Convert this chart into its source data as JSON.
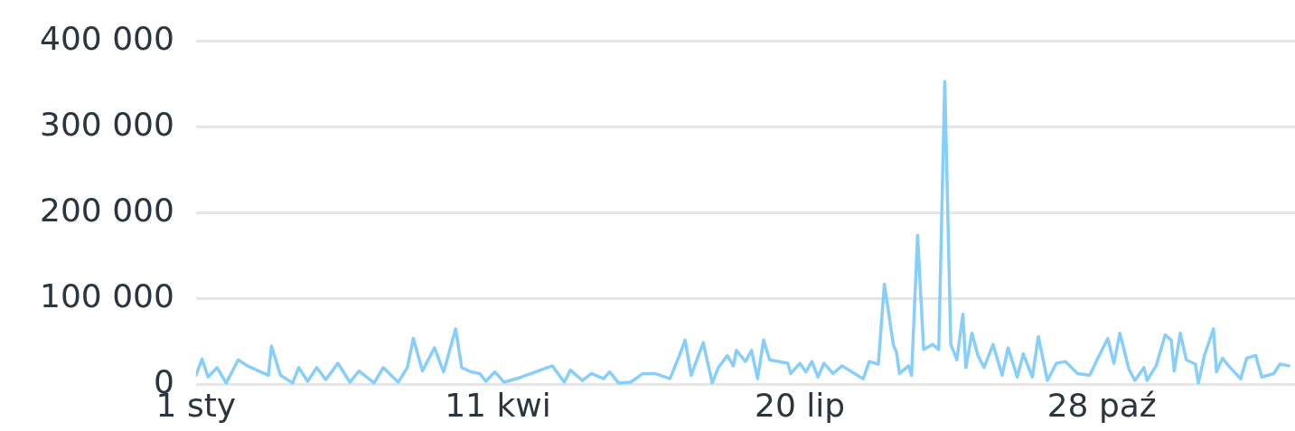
{
  "chart_data": {
    "type": "line",
    "x": [
      "--01-01",
      "--01-03",
      "--01-05",
      "--01-08",
      "--01-11",
      "--01-15",
      "--01-18",
      "--01-25",
      "--01-26",
      "--01-29",
      "--02-02",
      "--02-04",
      "--02-07",
      "--02-10",
      "--02-13",
      "--02-17",
      "--02-21",
      "--02-24",
      "--03-01",
      "--03-04",
      "--03-09",
      "--03-12",
      "--03-14",
      "--03-17",
      "--03-21",
      "--03-24",
      "--03-25",
      "--03-28",
      "--03-30",
      "--04-02",
      "--04-05",
      "--04-07",
      "--04-10",
      "--04-13",
      "--04-18",
      "--04-22",
      "--04-29",
      "--05-03",
      "--05-05",
      "--05-09",
      "--05-12",
      "--05-16",
      "--05-18",
      "--05-21",
      "--05-25",
      "--05-29",
      "--06-02",
      "--06-07",
      "--06-10",
      "--06-12",
      "--06-14",
      "--06-18",
      "--06-21",
      "--06-23",
      "--06-26",
      "--06-28",
      "--06-29",
      "--07-02",
      "--07-04",
      "--07-06",
      "--07-08",
      "--07-10",
      "--07-16",
      "--07-17",
      "--07-20",
      "--07-22",
      "--07-24",
      "--07-26",
      "--07-28",
      "--07-31",
      "--08-03",
      "--08-08",
      "--08-10",
      "--08-12",
      "--08-15",
      "--08-17",
      "--08-20",
      "--08-21",
      "--08-22",
      "--08-25",
      "--08-26",
      "--08-28",
      "--08-30",
      "--09-02",
      "--09-04",
      "--09-06",
      "--09-08",
      "--09-10",
      "--09-12",
      "--09-13",
      "--09-15",
      "--09-17",
      "--09-19",
      "--09-22",
      "--09-25",
      "--09-27",
      "--09-30",
      "--10-02",
      "--10-05",
      "--10-07",
      "--10-10",
      "--10-13",
      "--10-16",
      "--10-20",
      "--10-24",
      "--10-27",
      "--10-30",
      "--11-01",
      "--11-03",
      "--11-06",
      "--11-08",
      "--11-11",
      "--11-12",
      "--11-15",
      "--11-18",
      "--11-20",
      "--11-21",
      "--11-23",
      "--11-25",
      "--11-28",
      "--11-29",
      "--12-01",
      "--12-04",
      "--12-05",
      "--12-07",
      "--12-09",
      "--12-13",
      "--12-15",
      "--12-18",
      "--12-20",
      "--12-24",
      "--12-26",
      "--12-29"
    ],
    "series": [
      {
        "color": "#87cffa",
        "values": [
          11000,
          30000,
          9000,
          20000,
          2000,
          29000,
          22000,
          11000,
          45000,
          11000,
          2000,
          20000,
          4000,
          20000,
          6000,
          25000,
          3000,
          16000,
          2000,
          20000,
          3000,
          20000,
          54000,
          16000,
          43000,
          15000,
          27000,
          65000,
          20000,
          15000,
          13000,
          4000,
          15000,
          3000,
          8000,
          13000,
          22000,
          3000,
          17000,
          5000,
          13000,
          7000,
          15000,
          2000,
          3000,
          13000,
          13000,
          7000,
          33000,
          52000,
          11000,
          49000,
          2000,
          20000,
          34000,
          22000,
          40000,
          27000,
          40000,
          7000,
          52000,
          29000,
          25000,
          13000,
          25000,
          15000,
          27000,
          9000,
          25000,
          13000,
          22000,
          11000,
          7000,
          27000,
          24000,
          117000,
          46000,
          38000,
          13000,
          22000,
          11000,
          174000,
          41000,
          47000,
          41000,
          353000,
          47000,
          29000,
          82000,
          20000,
          60000,
          34000,
          20000,
          47000,
          11000,
          43000,
          9000,
          36000,
          9000,
          56000,
          5000,
          25000,
          27000,
          13000,
          11000,
          33000,
          54000,
          25000,
          60000,
          18000,
          5000,
          20000,
          5000,
          22000,
          58000,
          52000,
          16000,
          60000,
          29000,
          24000,
          2000,
          34000,
          65000,
          15000,
          31000,
          22000,
          7000,
          31000,
          34000,
          9000,
          13000,
          24000,
          22000
        ]
      }
    ],
    "xlim": [
      "--01-01",
      "--12-31"
    ],
    "xticks": [
      {
        "value": "--01-01",
        "label": "1 sty"
      },
      {
        "value": "--04-11",
        "label": "11 kwi"
      },
      {
        "value": "--07-20",
        "label": "20 lip"
      },
      {
        "value": "--10-28",
        "label": "28 paź"
      }
    ],
    "ylim": [
      0,
      400000
    ],
    "yticks": [
      0,
      {
        "value": 100000,
        "label": "100 000"
      },
      {
        "value": 200000,
        "label": "200 000"
      },
      {
        "value": 300000,
        "label": "300 000"
      },
      {
        "value": 400000,
        "label": "400 000"
      }
    ],
    "grid": "y",
    "marker": "none",
    "line_style": "solid",
    "legend": false
  }
}
